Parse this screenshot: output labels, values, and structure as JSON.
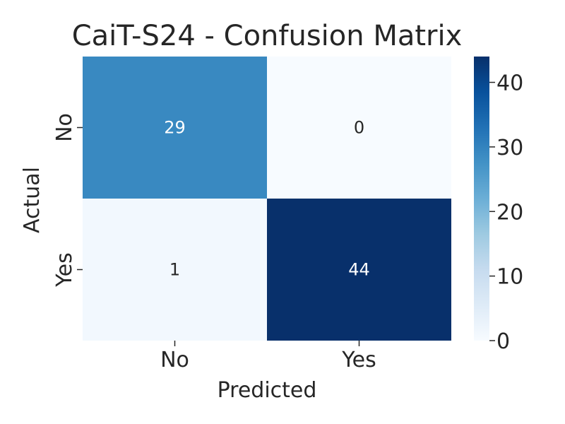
{
  "chart_data": {
    "type": "heatmap",
    "title": "CaiT-S24 - Confusion Matrix",
    "xlabel": "Predicted",
    "ylabel": "Actual",
    "x_categories": [
      "No",
      "Yes"
    ],
    "y_categories": [
      "No",
      "Yes"
    ],
    "values": [
      [
        29,
        0
      ],
      [
        1,
        44
      ]
    ],
    "colorbar": {
      "range": [
        0,
        44
      ],
      "ticks": [
        "0",
        "10",
        "20",
        "30",
        "40"
      ]
    },
    "colormap": "Blues",
    "colors": {
      "low": "#f7fbff",
      "high": "#08306b",
      "text_dark": "#262626",
      "text_light": "#ffffff"
    }
  }
}
